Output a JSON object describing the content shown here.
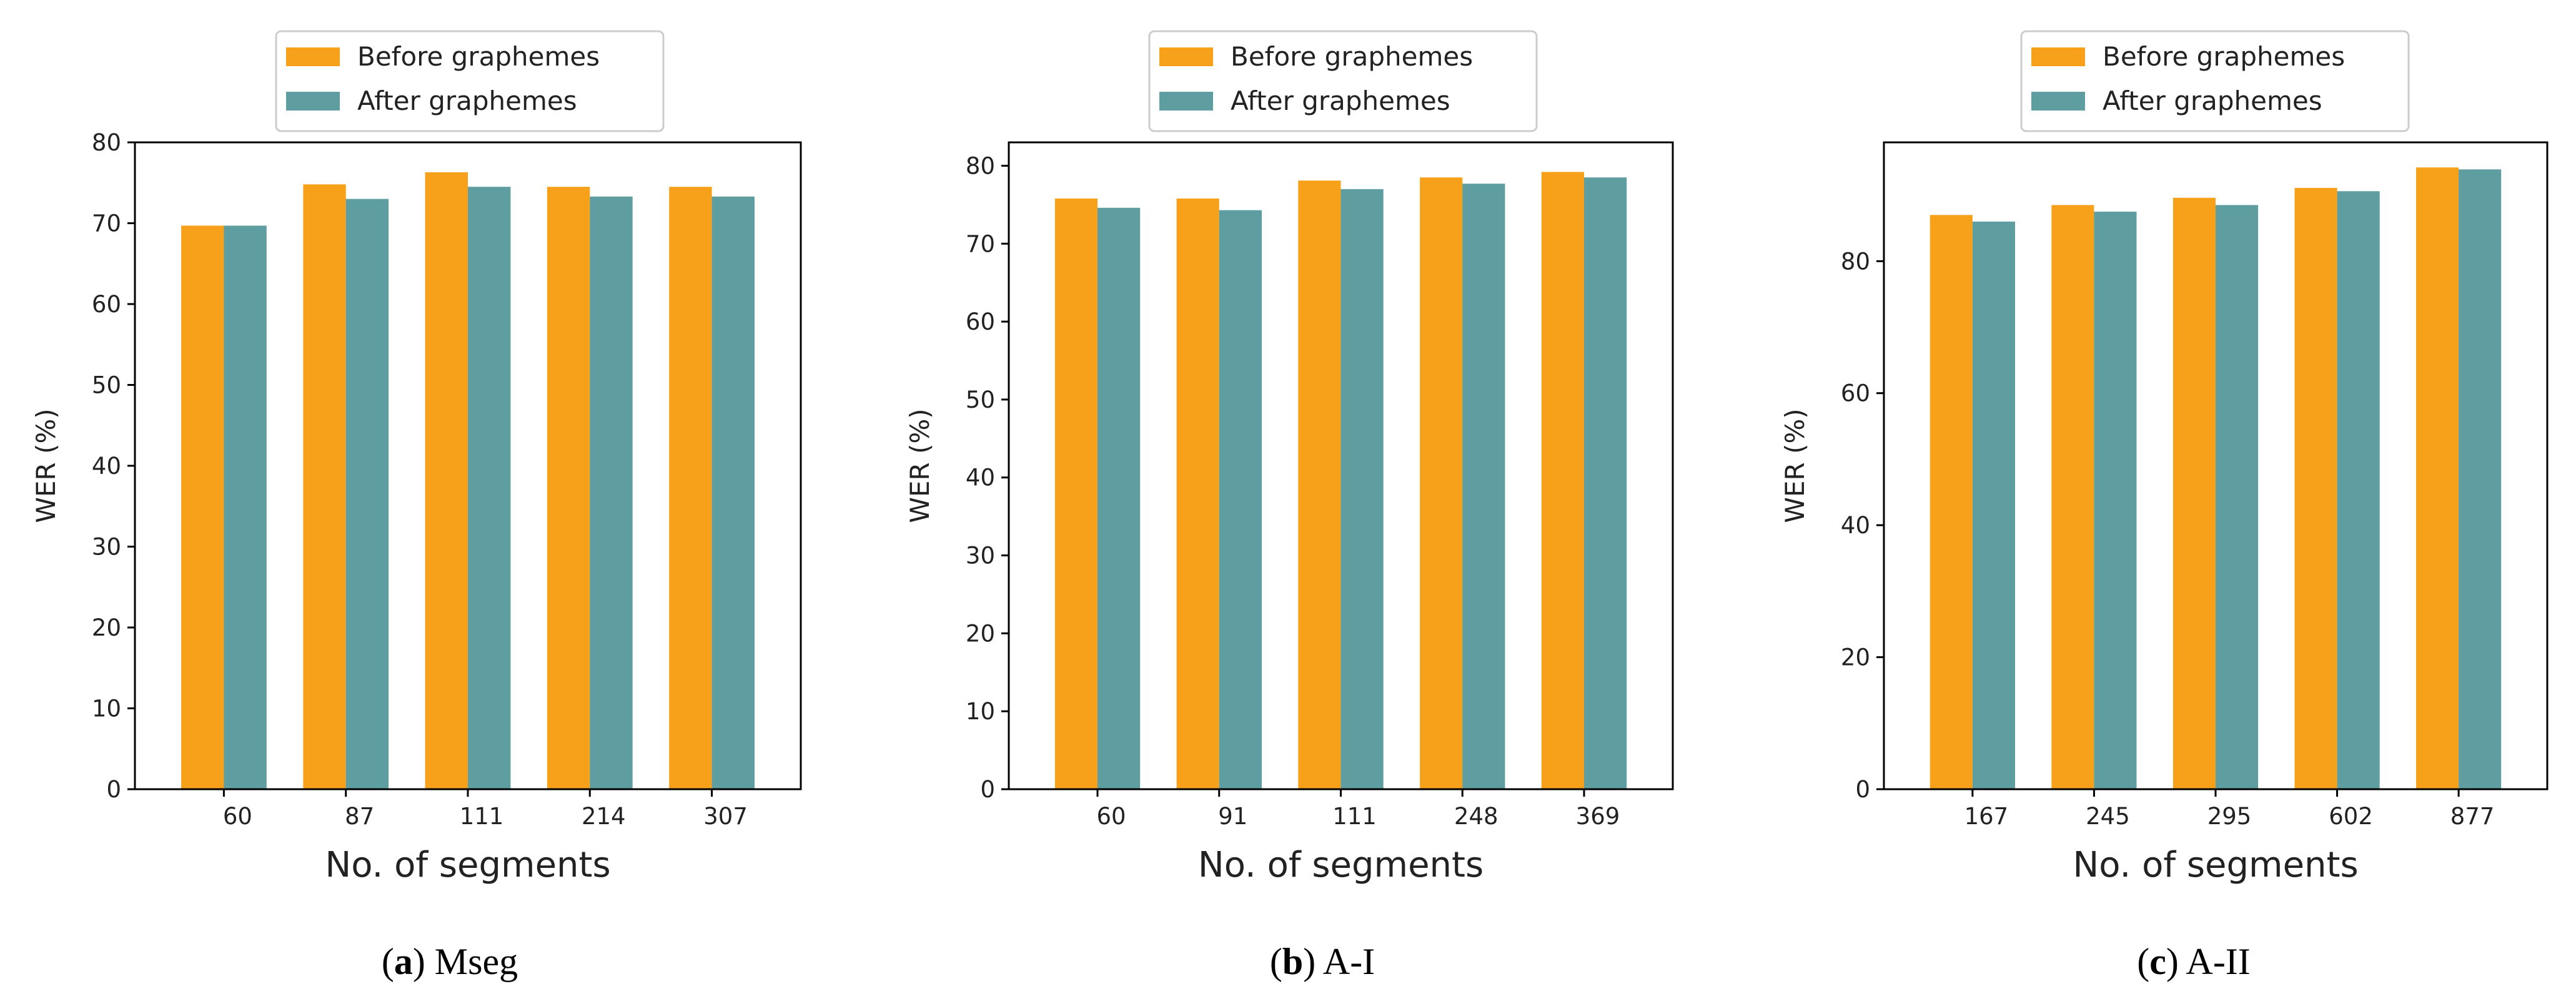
{
  "figure": {
    "legend": {
      "before_label": "Before graphemes",
      "after_label": "After graphemes"
    },
    "colors": {
      "before": "#F7A11A",
      "after": "#5F9EA0"
    }
  },
  "chart_data": [
    {
      "type": "bar",
      "title": "",
      "xlabel": "No. of segments",
      "ylabel": "WER (%)",
      "ylim": [
        0,
        80
      ],
      "yticks": [
        0,
        10,
        20,
        30,
        40,
        50,
        60,
        70,
        80
      ],
      "categories": [
        "60",
        "87",
        "111",
        "214",
        "307"
      ],
      "series": [
        {
          "name": "Before graphemes",
          "values": [
            69.7,
            74.8,
            76.3,
            74.5,
            74.5
          ]
        },
        {
          "name": "After graphemes",
          "values": [
            69.7,
            73.0,
            74.5,
            73.3,
            73.3
          ]
        }
      ],
      "caption": {
        "open": "(",
        "letter": "a",
        "close": ") Mseg"
      }
    },
    {
      "type": "bar",
      "title": "",
      "xlabel": "No. of segments",
      "ylabel": "WER (%)",
      "ylim": [
        0,
        83
      ],
      "yticks": [
        0,
        10,
        20,
        30,
        40,
        50,
        60,
        70,
        80
      ],
      "categories": [
        "60",
        "91",
        "111",
        "248",
        "369"
      ],
      "series": [
        {
          "name": "Before graphemes",
          "values": [
            75.8,
            75.8,
            78.1,
            78.5,
            79.2
          ]
        },
        {
          "name": "After graphemes",
          "values": [
            74.6,
            74.3,
            77.0,
            77.7,
            78.5
          ]
        }
      ],
      "caption": {
        "open": "(",
        "letter": "b",
        "close": ") A-I"
      }
    },
    {
      "type": "bar",
      "title": "",
      "xlabel": "No. of segments",
      "ylabel": "WER (%)",
      "ylim": [
        0,
        98
      ],
      "yticks": [
        0,
        20,
        40,
        60,
        80
      ],
      "categories": [
        "167",
        "245",
        "295",
        "602",
        "877"
      ],
      "series": [
        {
          "name": "Before graphemes",
          "values": [
            87.0,
            88.5,
            89.6,
            91.1,
            94.2
          ]
        },
        {
          "name": "After graphemes",
          "values": [
            86.0,
            87.5,
            88.5,
            90.6,
            93.9
          ]
        }
      ],
      "caption": {
        "open": "(",
        "letter": "c",
        "close": ") A-II"
      }
    }
  ]
}
